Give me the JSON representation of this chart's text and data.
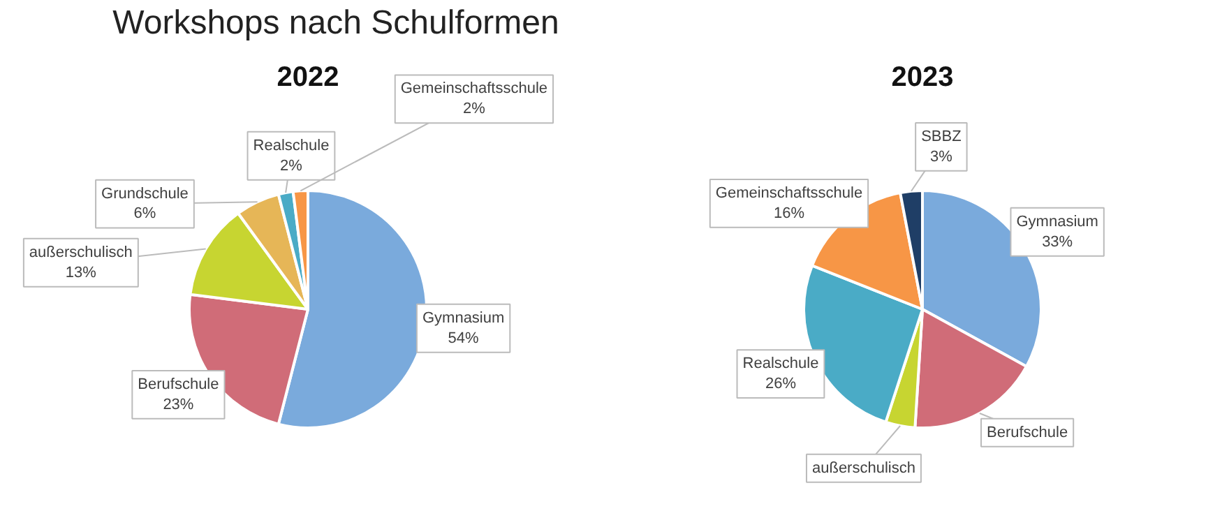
{
  "chart_data": [
    {
      "type": "pie",
      "title": "Workshops nach Schulformen",
      "subtitle": "2022",
      "categories": [
        "Gymnasium",
        "Berufschule",
        "außerschulisch",
        "Grundschule",
        "Realschule",
        "Gemeinschaftsschule"
      ],
      "values": [
        54,
        23,
        13,
        6,
        2,
        2
      ],
      "value_labels": [
        "54%",
        "23%",
        "13%",
        "6%",
        "2%",
        "2%"
      ],
      "colors": [
        "#7aaadc",
        "#d06c78",
        "#c7d531",
        "#e6b657",
        "#4aabc6",
        "#f79646"
      ]
    },
    {
      "type": "pie",
      "subtitle": "2023",
      "categories": [
        "Gymnasium",
        "Berufschule",
        "außerschulisch",
        "Realschule",
        "Gemeinschaftsschule",
        "SBBZ"
      ],
      "values": [
        33,
        18,
        4,
        26,
        16,
        3
      ],
      "value_labels": [
        "33%",
        null,
        null,
        "26%",
        "16%",
        "3%"
      ],
      "colors": [
        "#7aaadc",
        "#d06c78",
        "#c7d531",
        "#4aabc6",
        "#f79646",
        "#1f3e66"
      ]
    }
  ]
}
